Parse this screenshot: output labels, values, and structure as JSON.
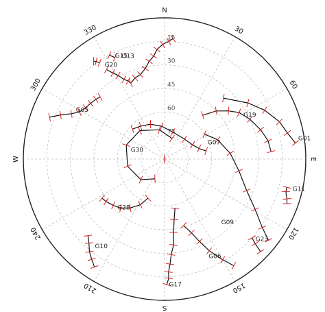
{
  "chart_data": {
    "type": "scatter",
    "subtype": "polar-skyplot",
    "title": "",
    "elevation_rings": [
      15,
      30,
      45,
      60,
      75
    ],
    "elevation_labels": [
      "15",
      "30",
      "45",
      "60",
      "75"
    ],
    "azimuth_spokes_deg": [
      0,
      30,
      60,
      90,
      120,
      150,
      180,
      210,
      240,
      270,
      300,
      330
    ],
    "azimuth_labels": [
      {
        "az": 0,
        "text": "N"
      },
      {
        "az": 30,
        "text": "30"
      },
      {
        "az": 60,
        "text": "60"
      },
      {
        "az": 90,
        "text": "E"
      },
      {
        "az": 120,
        "text": "120"
      },
      {
        "az": 150,
        "text": "150"
      },
      {
        "az": 180,
        "text": "S"
      },
      {
        "az": 210,
        "text": "210"
      },
      {
        "az": 240,
        "text": "240"
      },
      {
        "az": 270,
        "text": "W"
      },
      {
        "az": 300,
        "text": "300"
      },
      {
        "az": 330,
        "text": "330"
      }
    ],
    "grid": true,
    "colors": {
      "track": "#111111",
      "tick": "#e02020",
      "grid": "#bdbdbd",
      "outer": "#222222"
    },
    "series": [
      {
        "name": "G01",
        "points": [
          [
            44,
            36
          ],
          [
            56,
            26
          ],
          [
            64,
            19
          ],
          [
            72,
            13
          ],
          [
            78,
            10
          ],
          [
            83,
            6
          ]
        ]
      },
      {
        "name": "G11",
        "points": [
          [
            103,
            10
          ],
          [
            105,
            10
          ],
          [
            108,
            8
          ],
          [
            110,
            7
          ]
        ]
      },
      {
        "name": "G19",
        "points": [
          [
            41,
            53
          ],
          [
            47,
            45
          ],
          [
            53,
            39
          ],
          [
            58,
            34
          ],
          [
            65,
            30
          ],
          [
            73,
            26
          ],
          [
            80,
            23
          ],
          [
            86,
            22
          ]
        ]
      },
      {
        "name": "G23",
        "points": [
          [
            132,
            15
          ],
          [
            133,
            11
          ],
          [
            134,
            5
          ]
        ]
      },
      {
        "name": "G09",
        "points": [
          [
            58,
            60
          ],
          [
            70,
            54
          ],
          [
            85,
            48
          ],
          [
            99,
            42
          ],
          [
            111,
            34
          ],
          [
            119,
            24
          ],
          [
            125,
            14
          ],
          [
            128,
            6
          ]
        ]
      },
      {
        "name": "G06",
        "points": [
          [
            164,
            46
          ],
          [
            160,
            40
          ],
          [
            157,
            33
          ],
          [
            154,
            25
          ],
          [
            150,
            16
          ],
          [
            147,
            9
          ]
        ]
      },
      {
        "name": "G17",
        "points": [
          [
            168,
            58
          ],
          [
            171,
            51
          ],
          [
            173,
            43
          ],
          [
            174,
            35
          ],
          [
            176,
            29
          ],
          [
            177,
            23
          ],
          [
            178,
            18
          ],
          [
            178,
            14
          ],
          [
            179,
            10
          ]
        ]
      },
      {
        "name": "G28",
        "points": [
          [
            203,
            63
          ],
          [
            208,
            57
          ],
          [
            215,
            52
          ],
          [
            222,
            48
          ],
          [
            228,
            46
          ],
          [
            234,
            44
          ],
          [
            238,
            43
          ]
        ]
      },
      {
        "name": "G10",
        "points": [
          [
            225,
            21
          ],
          [
            222,
            18
          ],
          [
            219,
            14
          ],
          [
            216,
            11
          ],
          [
            213,
            8
          ]
        ]
      },
      {
        "name": "G05",
        "points": [
          [
            290,
            12
          ],
          [
            293,
            18
          ],
          [
            296,
            24
          ],
          [
            299,
            28
          ],
          [
            303,
            30
          ],
          [
            307,
            31
          ],
          [
            311,
            32
          ],
          [
            314,
            33
          ]
        ]
      },
      {
        "name": "G13",
        "points": [
          [
            327,
            22
          ],
          [
            329,
            26
          ],
          [
            331,
            29
          ],
          [
            333,
            33
          ],
          [
            335,
            35
          ],
          [
            336,
            37
          ],
          [
            340,
            35
          ],
          [
            344,
            34
          ],
          [
            348,
            31
          ],
          [
            351,
            27
          ],
          [
            354,
            24
          ],
          [
            356,
            20
          ],
          [
            359,
            17
          ],
          [
            2,
            15
          ],
          [
            4,
            13
          ]
        ]
      },
      {
        "name": "G15",
        "points": [
          [
            332,
            15
          ],
          [
            334,
            18
          ]
        ]
      },
      {
        "name": "G20",
        "points": [
          [
            324,
            13
          ],
          [
            325,
            14
          ],
          [
            326,
            16
          ]
        ]
      },
      {
        "name": "G30",
        "points": [
          [
            206,
            76
          ],
          [
            229,
            70
          ],
          [
            259,
            66
          ],
          [
            290,
            64
          ],
          [
            319,
            66
          ],
          [
            350,
            71
          ],
          [
            20,
            76
          ]
        ]
      },
      {
        "name": "G07",
        "points": [
          [
            79,
            63
          ],
          [
            73,
            67
          ],
          [
            63,
            70
          ],
          [
            45,
            72
          ],
          [
            17,
            72
          ],
          [
            -5,
            69
          ],
          [
            -22,
            66
          ],
          [
            -36,
            64
          ],
          [
            -47,
            62
          ]
        ]
      }
    ],
    "sat_label_az_el": [
      {
        "name": "G01",
        "az": 82,
        "el": 4
      },
      {
        "name": "G11",
        "az": 104,
        "el": 6
      },
      {
        "name": "G19",
        "az": 62,
        "el": 33
      },
      {
        "name": "G23",
        "az": 132,
        "el": 12
      },
      {
        "name": "G09",
        "az": 139,
        "el": 35
      },
      {
        "name": "G06",
        "az": 156,
        "el": 21
      },
      {
        "name": "G17",
        "az": 178,
        "el": 9
      },
      {
        "name": "G28",
        "az": 223,
        "el": 46
      },
      {
        "name": "G10",
        "az": 218,
        "el": 18
      },
      {
        "name": "G05",
        "az": 298,
        "el": 26
      },
      {
        "name": "G15",
        "az": 334,
        "el": 18
      },
      {
        "name": "G13",
        "az": 337,
        "el": 20
      },
      {
        "name": "G20",
        "az": 327,
        "el": 20
      },
      {
        "name": "G30",
        "az": 282,
        "el": 68
      },
      {
        "name": "G07",
        "az": 71,
        "el": 61
      }
    ]
  }
}
